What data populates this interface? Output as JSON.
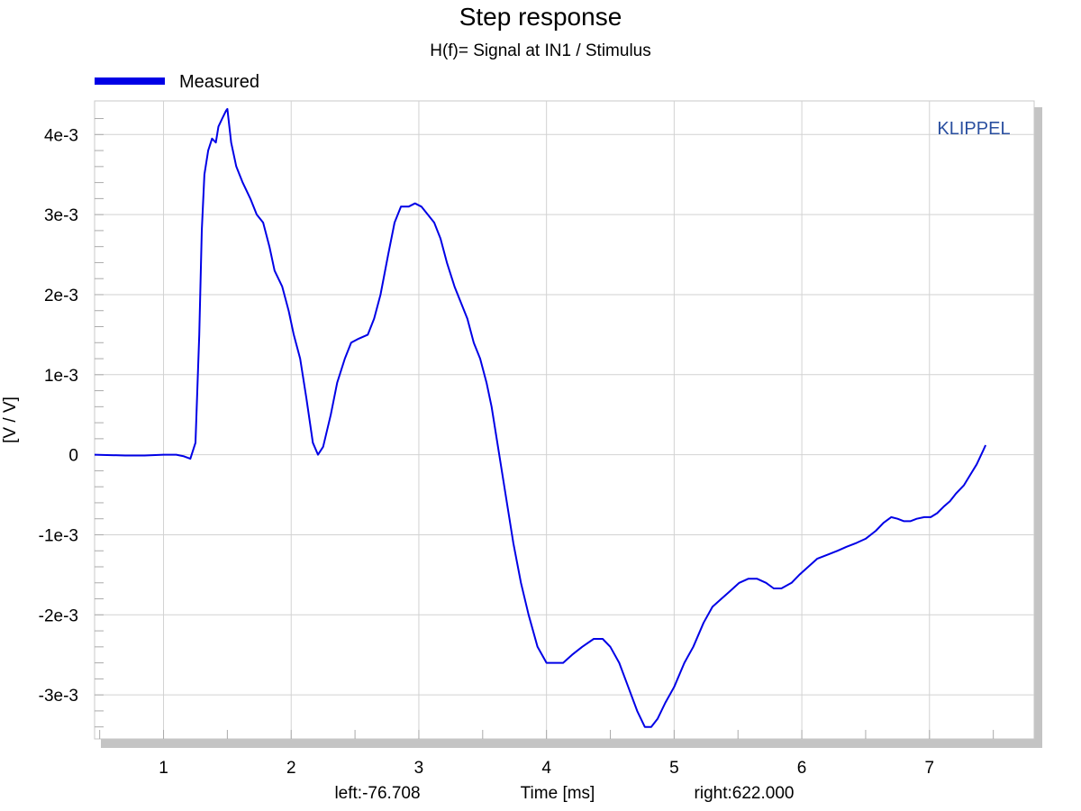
{
  "chart_data": {
    "type": "line",
    "title": "Step response",
    "subtitle": "H(f)= Signal at IN1 / Stimulus",
    "xlabel": "Time [ms]",
    "ylabel": "[V / V]",
    "watermark": "KLIPPEL",
    "cursor_left": "left:-76.708",
    "cursor_right": "right:622.000",
    "xlim": [
      0.46,
      7.82
    ],
    "ylim": [
      -0.00355,
      0.00442
    ],
    "x_ticks": [
      1,
      2,
      3,
      4,
      5,
      6,
      7
    ],
    "x_tick_labels": [
      "1",
      "2",
      "3",
      "4",
      "5",
      "6",
      "7"
    ],
    "y_ticks": [
      0.004,
      0.003,
      0.002,
      0.001,
      0,
      -0.001,
      -0.002,
      -0.003
    ],
    "y_tick_labels": [
      "4e-3",
      "3e-3",
      "2e-3",
      "1e-3",
      "0",
      "-1e-3",
      "-2e-3",
      "-3e-3"
    ],
    "grid": true,
    "legend_position": "top-left",
    "colors": {
      "series": "#0000e6",
      "watermark": "#2a4fa0",
      "grid": "#d2d2d2",
      "shadow": "#c4c4c4"
    },
    "series": [
      {
        "name": "Measured",
        "points": [
          [
            0.46,
            0.0
          ],
          [
            0.7,
            -1e-05
          ],
          [
            0.85,
            -1e-05
          ],
          [
            1.0,
            0.0
          ],
          [
            1.1,
            0.0
          ],
          [
            1.16,
            -2e-05
          ],
          [
            1.21,
            -5e-05
          ],
          [
            1.25,
            0.00015
          ],
          [
            1.28,
            0.0015
          ],
          [
            1.3,
            0.0028
          ],
          [
            1.32,
            0.0035
          ],
          [
            1.35,
            0.0038
          ],
          [
            1.38,
            0.00395
          ],
          [
            1.41,
            0.0039
          ],
          [
            1.43,
            0.0041
          ],
          [
            1.46,
            0.0042
          ],
          [
            1.49,
            0.0043
          ],
          [
            1.5,
            0.00432
          ],
          [
            1.53,
            0.0039
          ],
          [
            1.57,
            0.0036
          ],
          [
            1.62,
            0.0034
          ],
          [
            1.68,
            0.0032
          ],
          [
            1.73,
            0.003
          ],
          [
            1.78,
            0.0029
          ],
          [
            1.83,
            0.0026
          ],
          [
            1.87,
            0.0023
          ],
          [
            1.93,
            0.0021
          ],
          [
            1.98,
            0.0018
          ],
          [
            2.02,
            0.0015
          ],
          [
            2.07,
            0.0012
          ],
          [
            2.12,
            0.0007
          ],
          [
            2.17,
            0.00015
          ],
          [
            2.21,
            0.0
          ],
          [
            2.25,
            0.0001
          ],
          [
            2.31,
            0.0005
          ],
          [
            2.36,
            0.0009
          ],
          [
            2.42,
            0.0012
          ],
          [
            2.47,
            0.0014
          ],
          [
            2.53,
            0.00145
          ],
          [
            2.6,
            0.0015
          ],
          [
            2.65,
            0.0017
          ],
          [
            2.7,
            0.002
          ],
          [
            2.76,
            0.0025
          ],
          [
            2.81,
            0.0029
          ],
          [
            2.86,
            0.0031
          ],
          [
            2.92,
            0.0031
          ],
          [
            2.97,
            0.00314
          ],
          [
            3.02,
            0.0031
          ],
          [
            3.07,
            0.003
          ],
          [
            3.12,
            0.0029
          ],
          [
            3.17,
            0.0027
          ],
          [
            3.22,
            0.0024
          ],
          [
            3.28,
            0.0021
          ],
          [
            3.33,
            0.0019
          ],
          [
            3.38,
            0.0017
          ],
          [
            3.43,
            0.0014
          ],
          [
            3.48,
            0.0012
          ],
          [
            3.53,
            0.0009
          ],
          [
            3.57,
            0.0006
          ],
          [
            3.62,
            0.0001
          ],
          [
            3.68,
            -0.0005
          ],
          [
            3.74,
            -0.0011
          ],
          [
            3.8,
            -0.0016
          ],
          [
            3.86,
            -0.002
          ],
          [
            3.93,
            -0.0024
          ],
          [
            4.0,
            -0.0026
          ],
          [
            4.08,
            -0.0026
          ],
          [
            4.13,
            -0.0026
          ],
          [
            4.2,
            -0.0025
          ],
          [
            4.28,
            -0.0024
          ],
          [
            4.37,
            -0.0023
          ],
          [
            4.44,
            -0.0023
          ],
          [
            4.5,
            -0.0024
          ],
          [
            4.57,
            -0.0026
          ],
          [
            4.64,
            -0.0029
          ],
          [
            4.71,
            -0.0032
          ],
          [
            4.77,
            -0.0034
          ],
          [
            4.82,
            -0.0034
          ],
          [
            4.87,
            -0.0033
          ],
          [
            4.93,
            -0.0031
          ],
          [
            5.0,
            -0.0029
          ],
          [
            5.08,
            -0.0026
          ],
          [
            5.15,
            -0.0024
          ],
          [
            5.23,
            -0.0021
          ],
          [
            5.3,
            -0.0019
          ],
          [
            5.37,
            -0.0018
          ],
          [
            5.44,
            -0.0017
          ],
          [
            5.51,
            -0.0016
          ],
          [
            5.58,
            -0.00155
          ],
          [
            5.65,
            -0.00155
          ],
          [
            5.72,
            -0.0016
          ],
          [
            5.78,
            -0.00167
          ],
          [
            5.84,
            -0.00167
          ],
          [
            5.92,
            -0.0016
          ],
          [
            5.98,
            -0.0015
          ],
          [
            6.05,
            -0.0014
          ],
          [
            6.12,
            -0.0013
          ],
          [
            6.2,
            -0.00125
          ],
          [
            6.28,
            -0.0012
          ],
          [
            6.35,
            -0.00115
          ],
          [
            6.43,
            -0.0011
          ],
          [
            6.5,
            -0.00105
          ],
          [
            6.58,
            -0.00095
          ],
          [
            6.64,
            -0.00085
          ],
          [
            6.7,
            -0.00078
          ],
          [
            6.75,
            -0.0008
          ],
          [
            6.8,
            -0.00083
          ],
          [
            6.85,
            -0.00083
          ],
          [
            6.9,
            -0.0008
          ],
          [
            6.96,
            -0.00078
          ],
          [
            7.01,
            -0.00078
          ],
          [
            7.06,
            -0.00073
          ],
          [
            7.11,
            -0.00065
          ],
          [
            7.16,
            -0.00058
          ],
          [
            7.21,
            -0.00048
          ],
          [
            7.27,
            -0.00038
          ],
          [
            7.32,
            -0.00025
          ],
          [
            7.37,
            -0.00012
          ],
          [
            7.42,
            5e-05
          ],
          [
            7.44,
            0.00012
          ]
        ]
      }
    ]
  }
}
